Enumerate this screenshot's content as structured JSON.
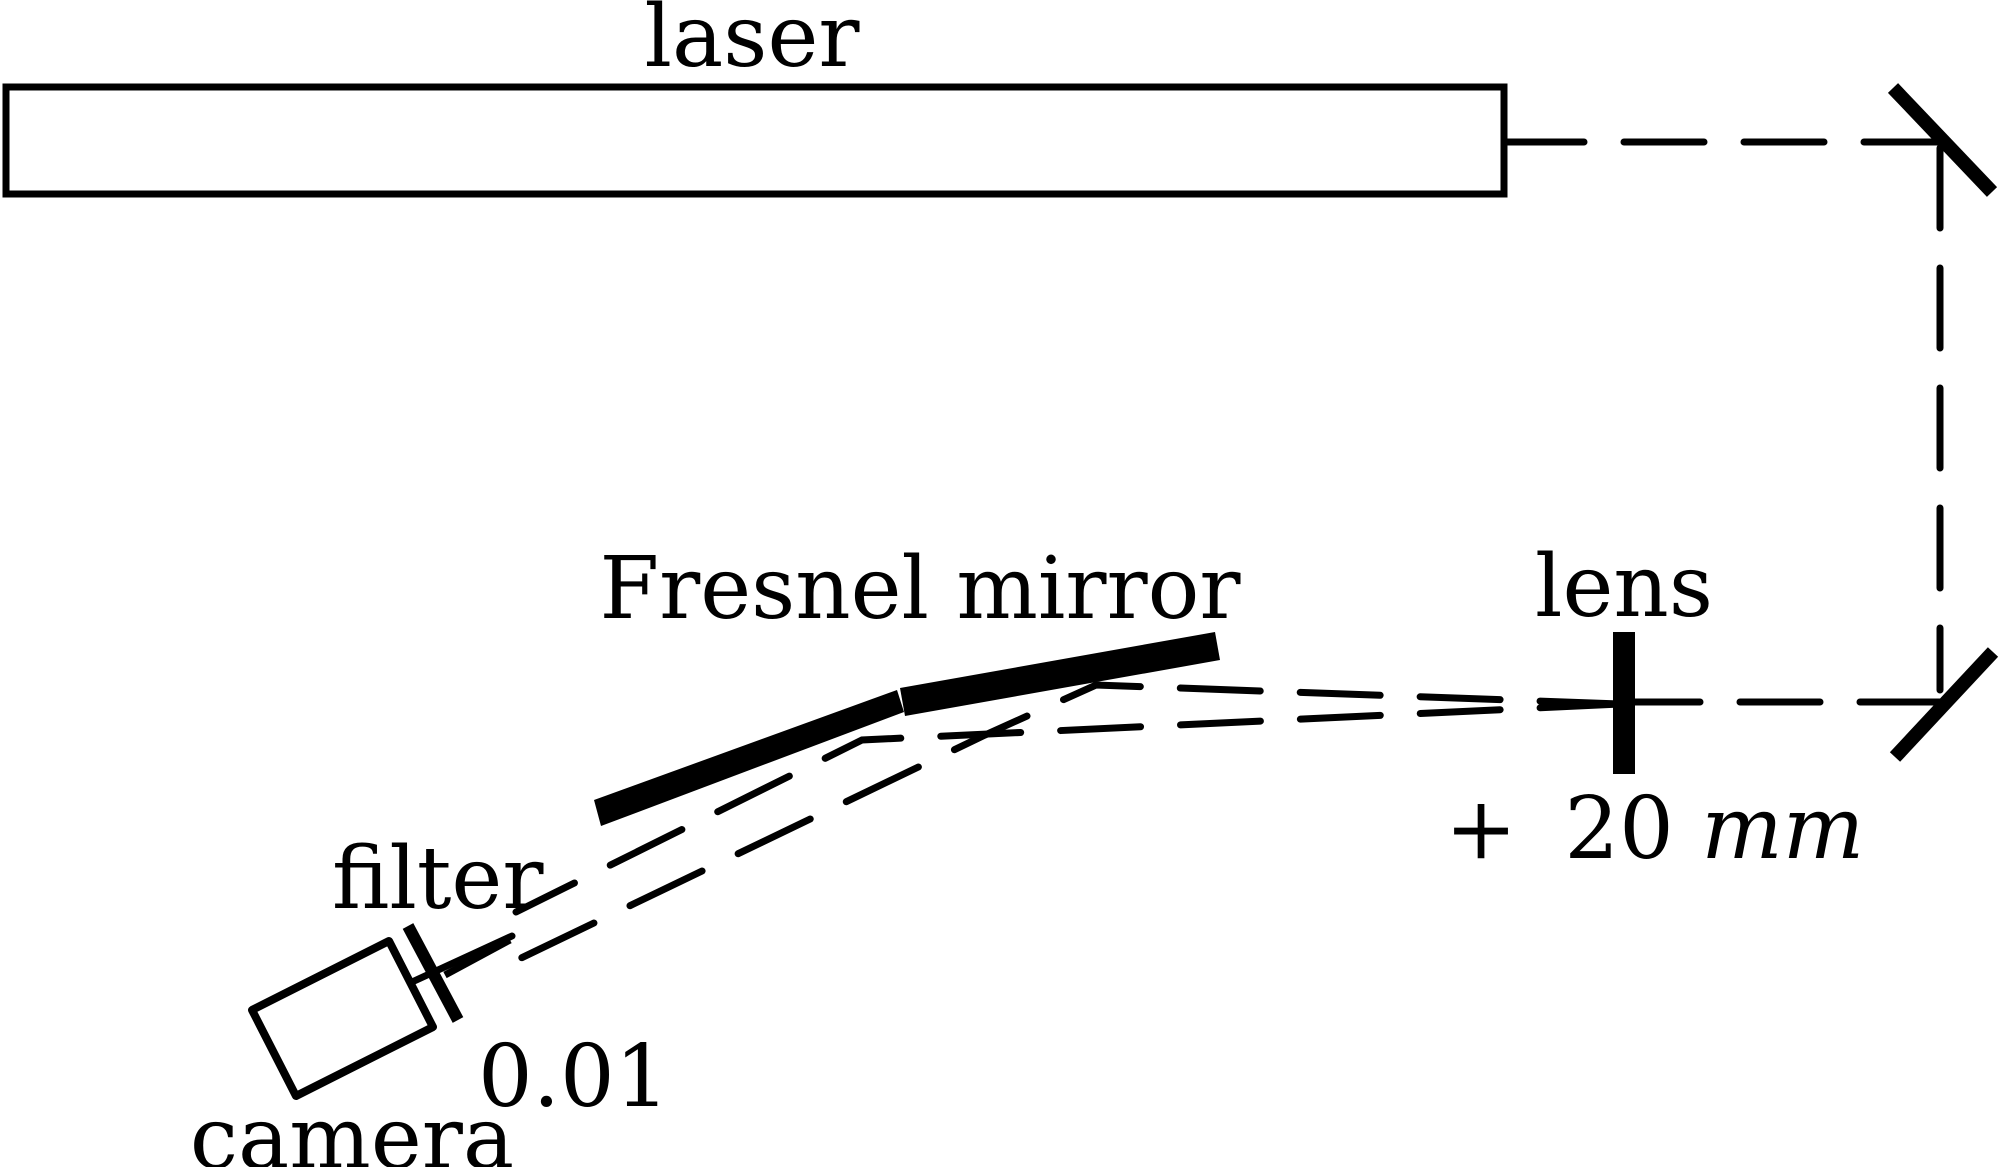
{
  "labels": {
    "laser": "laser",
    "fresnel_mirror": "Fresnel mirror",
    "lens": "lens",
    "lens_focal_sign": "+",
    "lens_focal_value": "20",
    "lens_focal_unit": "mm",
    "filter": "filter",
    "filter_value": "0.01",
    "camera": "camera"
  },
  "colors": {
    "ink": "#000000",
    "background": "#ffffff"
  }
}
